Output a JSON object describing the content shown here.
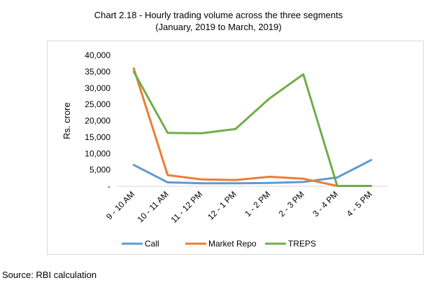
{
  "chart_data": {
    "type": "line",
    "title": "Chart 2.18 - Hourly trading volume across the three segments",
    "subtitle": "(January, 2019 to March, 2019)",
    "ylabel": "Rs. crore",
    "xlabel": "",
    "ylim": [
      0,
      40000
    ],
    "yticks": [
      0,
      5000,
      10000,
      15000,
      20000,
      25000,
      30000,
      35000,
      40000
    ],
    "ytick_labels": [
      "-",
      "5,000",
      "10,000",
      "15,000",
      "20,000",
      "25,000",
      "30,000",
      "35,000",
      "40,000"
    ],
    "categories": [
      "9 - 10 AM",
      "10 - 11 AM",
      "11 - 12 PM",
      "12 - 1 PM",
      "1 - 2 PM",
      "2 - 3 PM",
      "3 - 4 PM",
      "4 - 5 PM"
    ],
    "series": [
      {
        "name": "Call",
        "color": "#5b9bd5",
        "values": [
          6500,
          1200,
          900,
          900,
          1000,
          1300,
          2700,
          8000
        ]
      },
      {
        "name": "Market Repo",
        "color": "#ed7d31",
        "values": [
          36000,
          3400,
          2100,
          1900,
          2900,
          2300,
          100,
          null
        ]
      },
      {
        "name": "TREPS",
        "color": "#70ad47",
        "values": [
          35000,
          16300,
          16200,
          17500,
          26800,
          34200,
          100,
          100
        ]
      }
    ],
    "legend_position": "bottom",
    "grid": false
  },
  "source": "Source: RBI calculation"
}
